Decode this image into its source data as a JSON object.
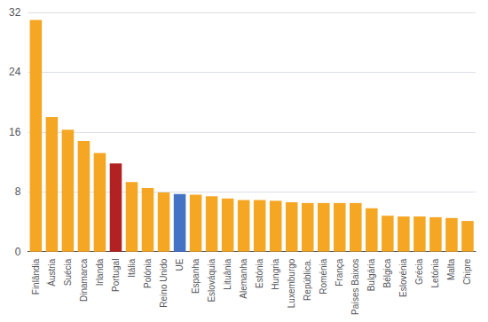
{
  "chart_data": {
    "type": "bar",
    "categories": [
      "Finlândia",
      "Áustria",
      "Suécia",
      "Dinamarca",
      "Irlanda",
      "Portugal",
      "Itália",
      "Polónia",
      "Reino Unido",
      "UE",
      "Espanha",
      "Eslováquia",
      "Lituânia",
      "Alemanha",
      "Estónia",
      "Hungria",
      "Luxemburgo",
      "República.",
      "Roménia",
      "França",
      "Países Baixos",
      "Bulgária",
      "Bélgica",
      "Eslovénia",
      "Grécia",
      "Letónia",
      "Malta",
      "Chipre"
    ],
    "values": [
      31.0,
      18.0,
      16.3,
      14.8,
      13.2,
      11.8,
      9.3,
      8.5,
      7.9,
      7.7,
      7.6,
      7.4,
      7.1,
      6.9,
      6.9,
      6.8,
      6.6,
      6.5,
      6.5,
      6.5,
      6.5,
      5.8,
      4.8,
      4.7,
      4.7,
      4.6,
      4.5,
      4.1
    ],
    "colors": [
      "#F5A623",
      "#F5A623",
      "#F5A623",
      "#F5A623",
      "#F5A623",
      "#B22222",
      "#F5A623",
      "#F5A623",
      "#F5A623",
      "#4472C4",
      "#F5A623",
      "#F5A623",
      "#F5A623",
      "#F5A623",
      "#F5A623",
      "#F5A623",
      "#F5A623",
      "#F5A623",
      "#F5A623",
      "#F5A623",
      "#F5A623",
      "#F5A623",
      "#F5A623",
      "#F5A623",
      "#F5A623",
      "#F5A623",
      "#F5A623",
      "#F5A623"
    ],
    "ylim": [
      0,
      32
    ],
    "yticks": [
      0,
      8,
      16,
      24,
      32
    ],
    "grid": true
  }
}
